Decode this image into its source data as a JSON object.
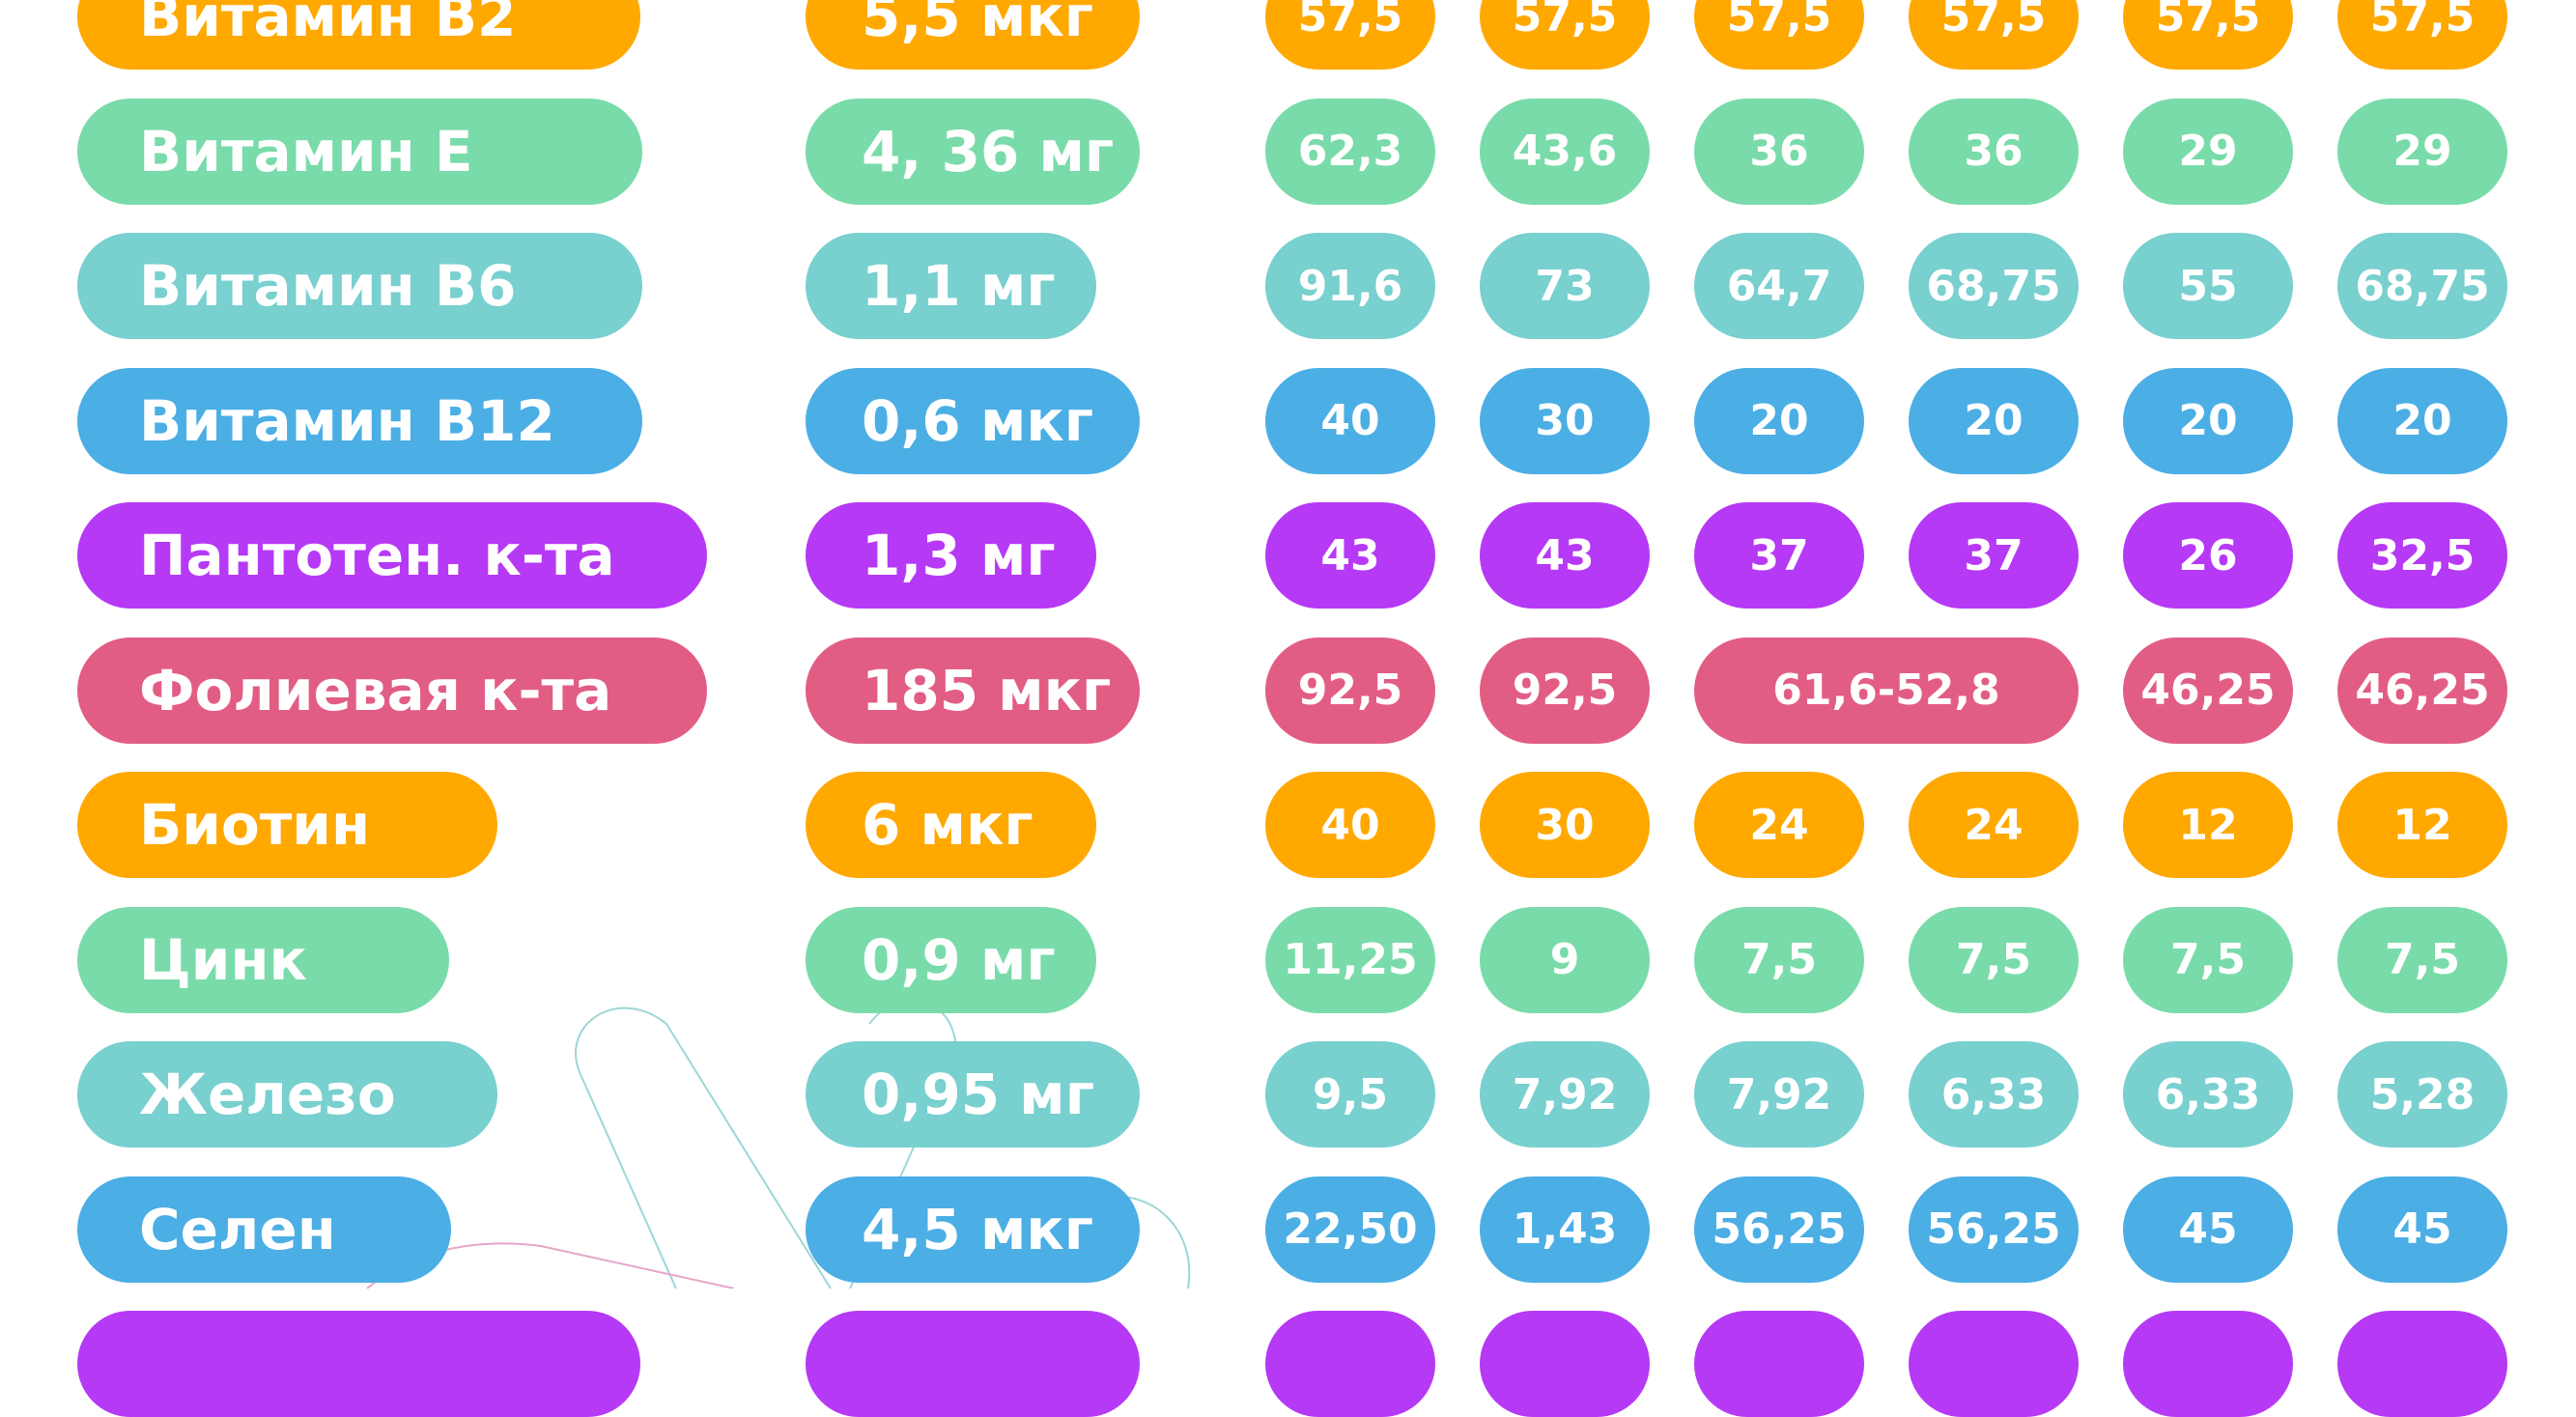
{
  "colors": {
    "orange": "#FFA800",
    "green": "#79DBA9",
    "teal": "#78D0CF",
    "blue": "#4BAEE5",
    "purple": "#B639F5",
    "pink": "#E25D84"
  },
  "rows": [
    {
      "name": "Витамин B2",
      "norm": "5,5 мкг",
      "color": "orange",
      "values": [
        "57,5",
        "57,5",
        "57,5",
        "57,5",
        "57,5",
        "57,5"
      ]
    },
    {
      "name": "Витамин Е",
      "norm": "4, 36 мг",
      "color": "green",
      "values": [
        "62,3",
        "43,6",
        "36",
        "36",
        "29",
        "29"
      ]
    },
    {
      "name": "Витамин В6",
      "norm": "1,1 мг",
      "color": "teal",
      "values": [
        "91,6",
        "73",
        "64,7",
        "68,75",
        "55",
        "68,75"
      ]
    },
    {
      "name": "Витамин В12",
      "norm": "0,6 мкг",
      "color": "blue",
      "values": [
        "40",
        "30",
        "20",
        "20",
        "20",
        "20"
      ]
    },
    {
      "name": "Пантотен. к-та",
      "norm": "1,3 мг",
      "color": "purple",
      "values": [
        "43",
        "43",
        "37",
        "37",
        "26",
        "32,5"
      ]
    },
    {
      "name": "Фолиевая к-та",
      "norm": "185 мкг",
      "color": "pink",
      "values": [
        "92,5",
        "92,5",
        "61,6-52,8",
        "46,25",
        "46,25"
      ],
      "spans": [
        1,
        1,
        2,
        1,
        1
      ]
    },
    {
      "name": "Биотин",
      "norm": "6 мкг",
      "color": "orange",
      "values": [
        "40",
        "30",
        "24",
        "24",
        "12",
        "12"
      ]
    },
    {
      "name": "Цинк",
      "norm": "0,9 мг",
      "color": "green",
      "values": [
        "11,25",
        "9",
        "7,5",
        "7,5",
        "7,5",
        "7,5"
      ]
    },
    {
      "name": "Железо",
      "norm": "0,95 мг",
      "color": "teal",
      "values": [
        "9,5",
        "7,92",
        "7,92",
        "6,33",
        "6,33",
        "5,28"
      ]
    },
    {
      "name": "Селен",
      "norm": "4,5 мкг",
      "color": "blue",
      "values": [
        "22,50",
        "1,43",
        "56,25",
        "56,25",
        "45",
        "45"
      ]
    },
    {
      "name": "",
      "norm": "",
      "color": "purple",
      "values": [
        "",
        "",
        "",
        "",
        "",
        ""
      ]
    }
  ]
}
